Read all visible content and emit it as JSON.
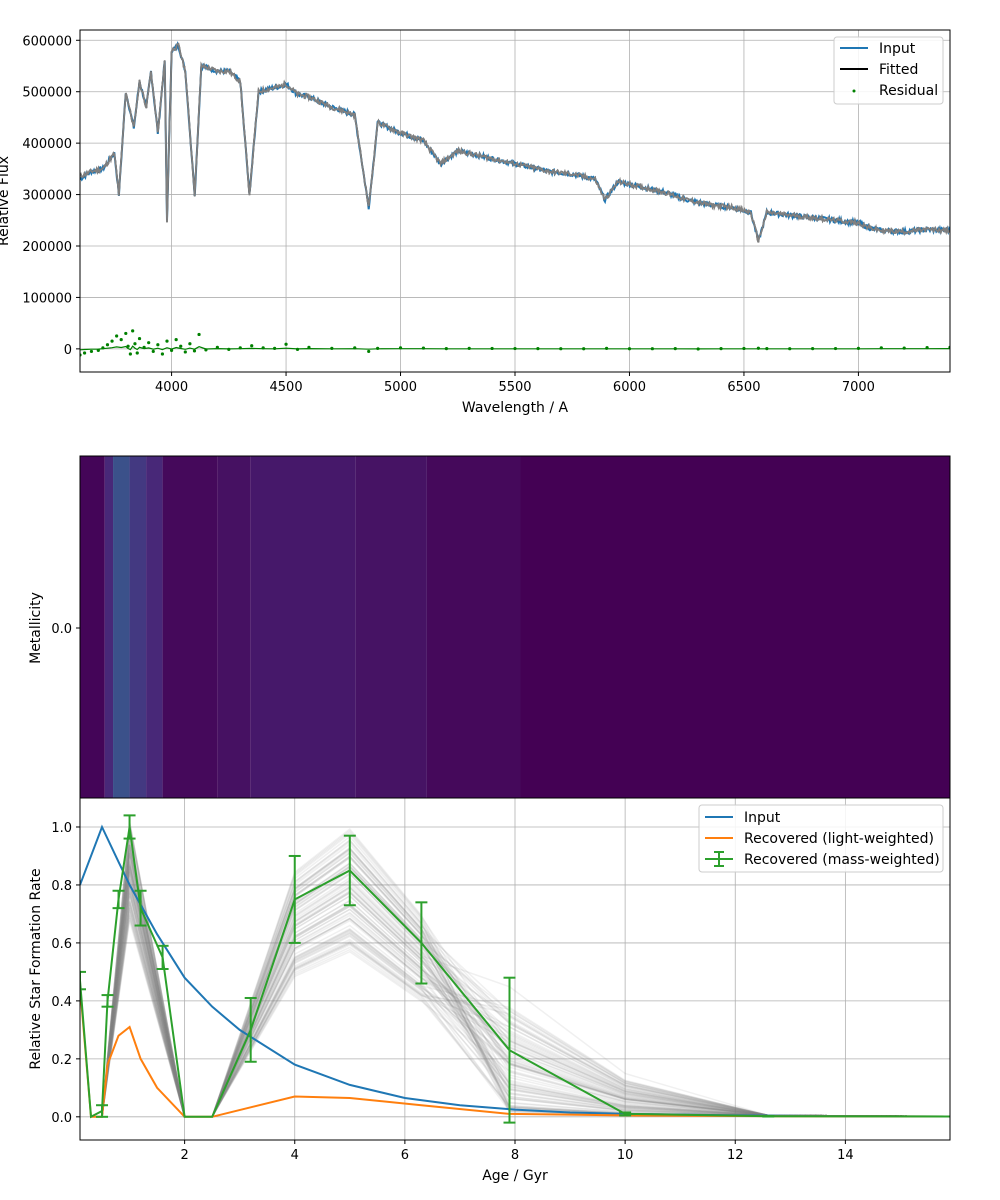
{
  "chart_data": [
    {
      "type": "line",
      "xlabel": "Wavelength / A",
      "ylabel": "Relative Flux",
      "xlim": [
        3600,
        7400
      ],
      "ylim": [
        -45000,
        620000
      ],
      "xticks": [
        4000,
        4500,
        5000,
        5500,
        6000,
        6500,
        7000
      ],
      "yticks": [
        0,
        100000,
        200000,
        300000,
        400000,
        500000,
        600000
      ],
      "grid": true,
      "legend_position": "top-right",
      "colors": {
        "input": "#1f77b4",
        "fitted": "#000000",
        "residual": "#008000",
        "overplot": "#808080"
      },
      "series": [
        {
          "name": "Input",
          "x": [
            3600,
            3650,
            3700,
            3750,
            3770,
            3800,
            3835,
            3860,
            3890,
            3910,
            3940,
            3970,
            3980,
            4000,
            4030,
            4060,
            4101,
            4130,
            4170,
            4200,
            4250,
            4300,
            4340,
            4380,
            4420,
            4470,
            4500,
            4550,
            4600,
            4700,
            4800,
            4861,
            4900,
            5000,
            5100,
            5175,
            5250,
            5350,
            5450,
            5550,
            5650,
            5750,
            5850,
            5893,
            5950,
            6050,
            6150,
            6250,
            6350,
            6450,
            6530,
            6563,
            6600,
            6700,
            6800,
            6900,
            7000,
            7050,
            7100,
            7200,
            7300,
            7400
          ],
          "values": [
            330000,
            345000,
            350000,
            380000,
            300000,
            500000,
            430000,
            520000,
            470000,
            540000,
            420000,
            560000,
            250000,
            580000,
            590000,
            540000,
            300000,
            550000,
            545000,
            540000,
            540000,
            520000,
            300000,
            500000,
            505000,
            510000,
            515000,
            495000,
            490000,
            470000,
            455000,
            275000,
            440000,
            420000,
            405000,
            360000,
            385000,
            375000,
            365000,
            355000,
            345000,
            340000,
            330000,
            290000,
            325000,
            315000,
            305000,
            290000,
            280000,
            275000,
            265000,
            210000,
            265000,
            260000,
            255000,
            250000,
            245000,
            235000,
            230000,
            228000,
            232000,
            230000
          ]
        },
        {
          "name": "Fitted",
          "x": [
            3600,
            3650,
            3700,
            3750,
            3770,
            3800,
            3835,
            3860,
            3890,
            3910,
            3940,
            3970,
            3980,
            4000,
            4030,
            4060,
            4101,
            4130,
            4170,
            4200,
            4250,
            4300,
            4340,
            4380,
            4420,
            4470,
            4500,
            4550,
            4600,
            4700,
            4800,
            4861,
            4900,
            5000,
            5100,
            5175,
            5250,
            5350,
            5450,
            5550,
            5650,
            5750,
            5850,
            5893,
            5950,
            6050,
            6150,
            6250,
            6350,
            6450,
            6530,
            6563,
            6600,
            6700,
            6800,
            6900,
            7000,
            7050,
            7100,
            7200,
            7300,
            7400
          ],
          "values": [
            335000,
            345000,
            350000,
            380000,
            300000,
            500000,
            430000,
            520000,
            470000,
            540000,
            420000,
            560000,
            250000,
            580000,
            590000,
            540000,
            300000,
            550000,
            545000,
            540000,
            540000,
            520000,
            300000,
            500000,
            505000,
            510000,
            515000,
            495000,
            490000,
            470000,
            455000,
            275000,
            440000,
            420000,
            405000,
            360000,
            385000,
            375000,
            365000,
            355000,
            345000,
            340000,
            330000,
            290000,
            325000,
            315000,
            305000,
            290000,
            280000,
            275000,
            265000,
            210000,
            265000,
            260000,
            255000,
            250000,
            245000,
            235000,
            230000,
            228000,
            232000,
            230000
          ]
        },
        {
          "name": "Residual",
          "kind": "scatter",
          "x": [
            3600,
            3620,
            3650,
            3680,
            3700,
            3720,
            3740,
            3760,
            3780,
            3800,
            3810,
            3820,
            3830,
            3840,
            3850,
            3860,
            3880,
            3900,
            3920,
            3940,
            3960,
            3980,
            4000,
            4020,
            4040,
            4060,
            4080,
            4100,
            4120,
            4150,
            4200,
            4250,
            4300,
            4350,
            4400,
            4450,
            4500,
            4550,
            4600,
            4700,
            4800,
            4861,
            4900,
            5000,
            5100,
            5200,
            5300,
            5400,
            5500,
            5600,
            5700,
            5800,
            5900,
            6000,
            6100,
            6200,
            6300,
            6400,
            6500,
            6563,
            6600,
            6700,
            6800,
            6900,
            7000,
            7100,
            7200,
            7300,
            7400
          ],
          "values": [
            -12000,
            -8000,
            -5000,
            -3000,
            2000,
            8000,
            15000,
            25000,
            18000,
            30000,
            5000,
            -10000,
            35000,
            10000,
            -8000,
            20000,
            3000,
            12000,
            -5000,
            8000,
            -10000,
            15000,
            -3000,
            18000,
            5000,
            -6000,
            10000,
            -4000,
            28000,
            -2000,
            3000,
            -1000,
            2000,
            6000,
            2000,
            1000,
            9000,
            -1000,
            3000,
            1000,
            2000,
            -5000,
            1000,
            2000,
            1500,
            500,
            1000,
            800,
            600,
            500,
            300,
            200,
            1000,
            200,
            300,
            400,
            -200,
            500,
            800,
            1200,
            500,
            300,
            400,
            600,
            1000,
            2000,
            1500,
            2500,
            3000
          ]
        }
      ]
    },
    {
      "type": "heatmap",
      "xlabel": "",
      "ylabel": "Metallicity",
      "yticks": [
        0.0
      ],
      "xlim": [
        0.1,
        15.9
      ],
      "colormap": [
        "#440154",
        "#482878",
        "#3e4989",
        "#31688e",
        "#26828e",
        "#1f9e89"
      ],
      "cells": [
        {
          "x0": 0.1,
          "x1": 0.55,
          "value": 0.02
        },
        {
          "x0": 0.55,
          "x1": 0.7,
          "value": 0.2
        },
        {
          "x0": 0.7,
          "x1": 1.0,
          "value": 0.45
        },
        {
          "x0": 1.0,
          "x1": 1.3,
          "value": 0.3
        },
        {
          "x0": 1.3,
          "x1": 1.6,
          "value": 0.2
        },
        {
          "x0": 1.6,
          "x1": 2.6,
          "value": 0.04
        },
        {
          "x0": 2.6,
          "x1": 3.2,
          "value": 0.08
        },
        {
          "x0": 3.2,
          "x1": 5.1,
          "value": 0.12
        },
        {
          "x0": 5.1,
          "x1": 6.4,
          "value": 0.09
        },
        {
          "x0": 6.4,
          "x1": 8.1,
          "value": 0.04
        },
        {
          "x0": 8.1,
          "x1": 15.9,
          "value": 0.0
        }
      ]
    },
    {
      "type": "line",
      "xlabel": "Age / Gyr",
      "ylabel": "Relative Star Formation Rate",
      "xlim": [
        0.1,
        15.9
      ],
      "ylim": [
        -0.08,
        1.1
      ],
      "xticks": [
        2,
        4,
        6,
        8,
        10,
        12,
        14
      ],
      "yticks": [
        0.0,
        0.2,
        0.4,
        0.6,
        0.8,
        1.0
      ],
      "grid": true,
      "legend_position": "top-right",
      "colors": {
        "input": "#1f77b4",
        "light": "#ff7f0e",
        "mass": "#2ca02c",
        "samples": "#808080"
      },
      "series": [
        {
          "name": "Input",
          "x": [
            0.1,
            0.5,
            0.8,
            1.0,
            1.5,
            2.0,
            2.5,
            3.0,
            4.0,
            5.0,
            6.0,
            7.0,
            8.0,
            9.0,
            10.0,
            12.0,
            14.0,
            15.9
          ],
          "values": [
            0.8,
            1.0,
            0.88,
            0.8,
            0.63,
            0.48,
            0.38,
            0.3,
            0.18,
            0.11,
            0.065,
            0.04,
            0.025,
            0.015,
            0.01,
            0.005,
            0.002,
            0.001
          ]
        },
        {
          "name": "Recovered (light-weighted)",
          "x": [
            0.1,
            0.3,
            0.5,
            0.6,
            0.8,
            1.0,
            1.2,
            1.5,
            2.0,
            2.5,
            4.0,
            5.0,
            6.3,
            7.9,
            10.0,
            12.6,
            15.9
          ],
          "values": [
            0.45,
            0.0,
            0.0,
            0.18,
            0.28,
            0.31,
            0.2,
            0.1,
            0.0,
            0.0,
            0.07,
            0.065,
            0.04,
            0.01,
            0.005,
            0.002,
            0.001
          ]
        },
        {
          "name": "Recovered (mass-weighted)",
          "x": [
            0.1,
            0.3,
            0.5,
            0.6,
            0.8,
            1.0,
            1.2,
            1.6,
            2.0,
            2.5,
            3.2,
            4.0,
            5.0,
            6.3,
            7.9,
            10.0,
            12.6,
            15.9
          ],
          "values": [
            0.47,
            0.0,
            0.02,
            0.4,
            0.75,
            1.0,
            0.72,
            0.55,
            0.0,
            0.0,
            0.3,
            0.75,
            0.85,
            0.6,
            0.23,
            0.01,
            0.002,
            0.001
          ],
          "err": [
            0.03,
            0.0,
            0.02,
            0.02,
            0.03,
            0.04,
            0.06,
            0.04,
            0.0,
            0.0,
            0.11,
            0.15,
            0.12,
            0.14,
            0.25,
            0.005,
            0.001,
            0.0
          ]
        }
      ],
      "samples": {
        "x": [
          0.5,
          1.0,
          2.0,
          2.5,
          4.0,
          5.0,
          6.3,
          7.9,
          10.0,
          12.6,
          15.9
        ],
        "peak_a": [
          1.0,
          0.85,
          0.95,
          0.75,
          0.9,
          1.0,
          0.8
        ],
        "peak_b": [
          0.9,
          1.0,
          0.8,
          0.7,
          0.95,
          0.85,
          1.0,
          0.65,
          0.75
        ],
        "tail": [
          0.6,
          0.45,
          0.3,
          0.15,
          0.05,
          0.5
        ]
      }
    }
  ]
}
